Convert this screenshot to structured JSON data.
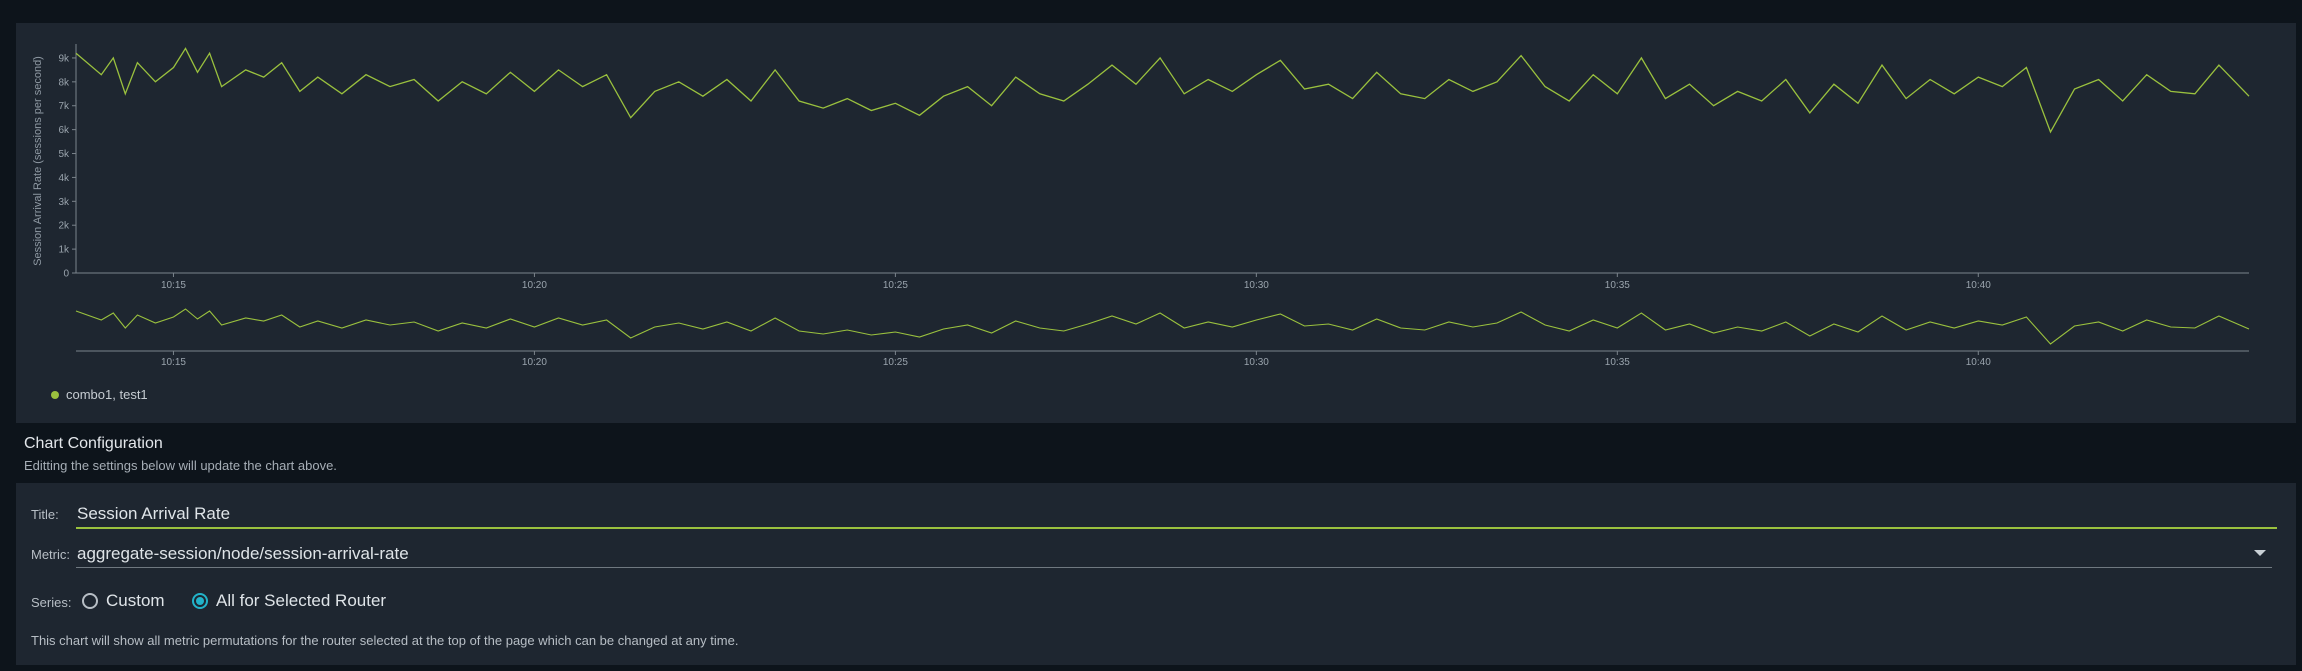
{
  "chart": {
    "ylabel": "Session Arrival Rate (sessions per second)",
    "legend": "combo1, test1",
    "accent": "#9ac13e"
  },
  "chart_data": {
    "type": "line",
    "ylabel": "Session Arrival Rate (sessions per second)",
    "ylim": [
      0,
      9500
    ],
    "yticks": [
      "0",
      "1k",
      "2k",
      "3k",
      "4k",
      "5k",
      "6k",
      "7k",
      "8k",
      "9k"
    ],
    "xlim": [
      "10:13:39",
      "10:43:45"
    ],
    "xticks": [
      "10:15",
      "10:20",
      "10:25",
      "10:30",
      "10:35",
      "10:40"
    ],
    "legend_position": "bottom-left",
    "grid": false,
    "series": [
      {
        "name": "combo1, test1",
        "color": "#9ac13e",
        "points": [
          [
            "10:13:39",
            9200
          ],
          [
            "10:14:00",
            8300
          ],
          [
            "10:14:10",
            9000
          ],
          [
            "10:14:20",
            7500
          ],
          [
            "10:14:30",
            8800
          ],
          [
            "10:14:45",
            8000
          ],
          [
            "10:15:00",
            8600
          ],
          [
            "10:15:10",
            9400
          ],
          [
            "10:15:20",
            8400
          ],
          [
            "10:15:30",
            9200
          ],
          [
            "10:15:40",
            7800
          ],
          [
            "10:16:00",
            8500
          ],
          [
            "10:16:15",
            8200
          ],
          [
            "10:16:30",
            8800
          ],
          [
            "10:16:45",
            7600
          ],
          [
            "10:17:00",
            8200
          ],
          [
            "10:17:20",
            7500
          ],
          [
            "10:17:40",
            8300
          ],
          [
            "10:18:00",
            7800
          ],
          [
            "10:18:20",
            8100
          ],
          [
            "10:18:40",
            7200
          ],
          [
            "10:19:00",
            8000
          ],
          [
            "10:19:20",
            7500
          ],
          [
            "10:19:40",
            8400
          ],
          [
            "10:20:00",
            7600
          ],
          [
            "10:20:20",
            8500
          ],
          [
            "10:20:40",
            7800
          ],
          [
            "10:21:00",
            8300
          ],
          [
            "10:21:20",
            6500
          ],
          [
            "10:21:40",
            7600
          ],
          [
            "10:22:00",
            8000
          ],
          [
            "10:22:20",
            7400
          ],
          [
            "10:22:40",
            8100
          ],
          [
            "10:23:00",
            7200
          ],
          [
            "10:23:20",
            8500
          ],
          [
            "10:23:40",
            7200
          ],
          [
            "10:24:00",
            6900
          ],
          [
            "10:24:20",
            7300
          ],
          [
            "10:24:40",
            6800
          ],
          [
            "10:25:00",
            7100
          ],
          [
            "10:25:20",
            6600
          ],
          [
            "10:25:40",
            7400
          ],
          [
            "10:26:00",
            7800
          ],
          [
            "10:26:20",
            7000
          ],
          [
            "10:26:40",
            8200
          ],
          [
            "10:27:00",
            7500
          ],
          [
            "10:27:20",
            7200
          ],
          [
            "10:27:40",
            7900
          ],
          [
            "10:28:00",
            8700
          ],
          [
            "10:28:20",
            7900
          ],
          [
            "10:28:40",
            9000
          ],
          [
            "10:29:00",
            7500
          ],
          [
            "10:29:20",
            8100
          ],
          [
            "10:29:40",
            7600
          ],
          [
            "10:30:00",
            8300
          ],
          [
            "10:30:20",
            8900
          ],
          [
            "10:30:40",
            7700
          ],
          [
            "10:31:00",
            7900
          ],
          [
            "10:31:20",
            7300
          ],
          [
            "10:31:40",
            8400
          ],
          [
            "10:32:00",
            7500
          ],
          [
            "10:32:20",
            7300
          ],
          [
            "10:32:40",
            8100
          ],
          [
            "10:33:00",
            7600
          ],
          [
            "10:33:20",
            8000
          ],
          [
            "10:33:40",
            9100
          ],
          [
            "10:34:00",
            7800
          ],
          [
            "10:34:20",
            7200
          ],
          [
            "10:34:40",
            8300
          ],
          [
            "10:35:00",
            7500
          ],
          [
            "10:35:20",
            9000
          ],
          [
            "10:35:40",
            7300
          ],
          [
            "10:36:00",
            7900
          ],
          [
            "10:36:20",
            7000
          ],
          [
            "10:36:40",
            7600
          ],
          [
            "10:37:00",
            7200
          ],
          [
            "10:37:20",
            8100
          ],
          [
            "10:37:40",
            6700
          ],
          [
            "10:38:00",
            7900
          ],
          [
            "10:38:20",
            7100
          ],
          [
            "10:38:40",
            8700
          ],
          [
            "10:39:00",
            7300
          ],
          [
            "10:39:20",
            8100
          ],
          [
            "10:39:40",
            7500
          ],
          [
            "10:40:00",
            8200
          ],
          [
            "10:40:20",
            7800
          ],
          [
            "10:40:40",
            8600
          ],
          [
            "10:41:00",
            5900
          ],
          [
            "10:41:20",
            7700
          ],
          [
            "10:41:40",
            8100
          ],
          [
            "10:42:00",
            7200
          ],
          [
            "10:42:20",
            8300
          ],
          [
            "10:42:40",
            7600
          ],
          [
            "10:43:00",
            7500
          ],
          [
            "10:43:20",
            8700
          ],
          [
            "10:43:45",
            7400
          ]
        ]
      }
    ]
  },
  "config": {
    "heading": "Chart Configuration",
    "subheading": "Editting the settings below will update the chart above.",
    "title_label": "Title:",
    "title_value": "Session Arrival Rate",
    "metric_label": "Metric:",
    "metric_value": "aggregate-session/node/session-arrival-rate",
    "series_label": "Series:",
    "series_custom": "Custom",
    "series_all": "All for Selected Router",
    "help": "This chart will show all metric permutations for the router selected at the top of the page which can be changed at any time."
  }
}
